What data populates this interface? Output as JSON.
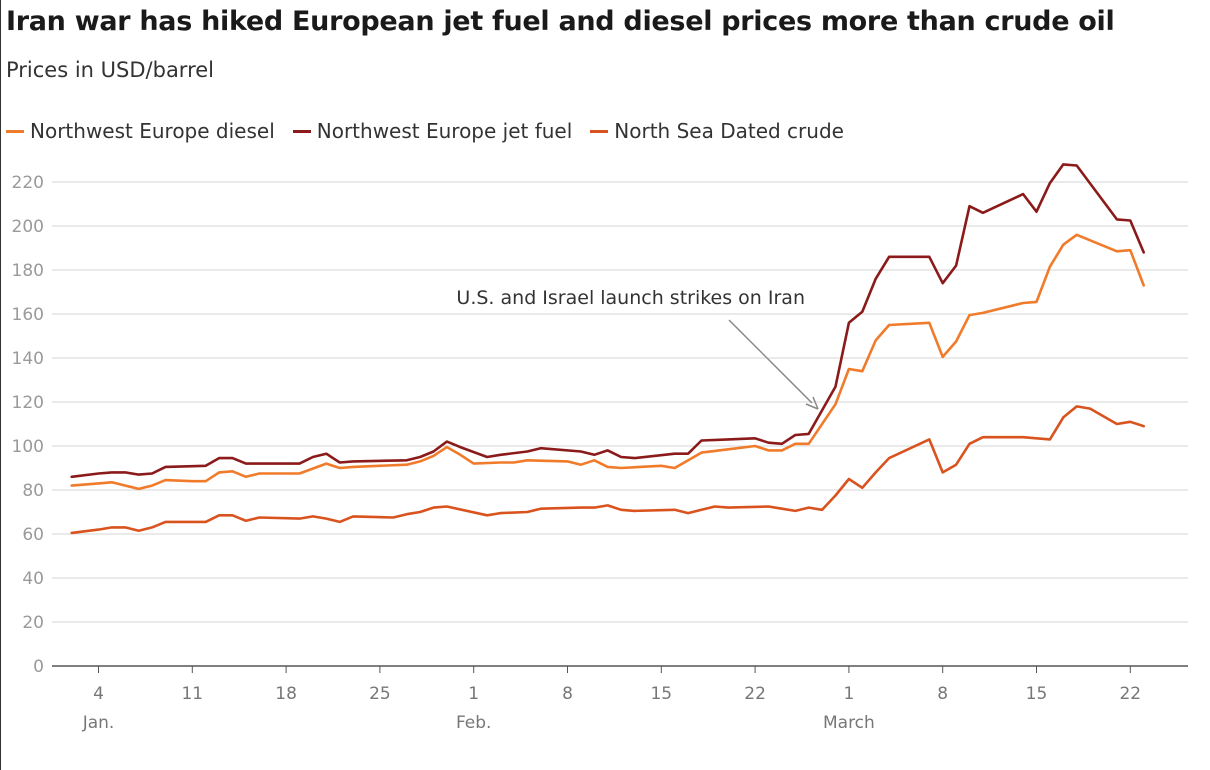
{
  "header": {
    "title": "Iran war has hiked European jet fuel and diesel prices more than crude oil",
    "subtitle": "Prices in USD/barrel"
  },
  "chart_data": {
    "type": "line",
    "title": "Iran war has hiked European jet fuel and diesel prices more than crude oil",
    "subtitle": "Prices in USD/barrel",
    "ylim": [
      0,
      230
    ],
    "y_ticks": [
      0,
      20,
      40,
      60,
      80,
      100,
      120,
      140,
      160,
      180,
      200,
      220
    ],
    "grid": true,
    "legend_position": "top-left",
    "x_ticks": [
      {
        "day": 4,
        "label": "4",
        "month": "Jan."
      },
      {
        "day": 11,
        "label": "11"
      },
      {
        "day": 18,
        "label": "18"
      },
      {
        "day": 25,
        "label": "25"
      },
      {
        "day": 32,
        "label": "1",
        "month": "Feb."
      },
      {
        "day": 39,
        "label": "8"
      },
      {
        "day": 46,
        "label": "15"
      },
      {
        "day": 53,
        "label": "22"
      },
      {
        "day": 60,
        "label": "1",
        "month": "March"
      },
      {
        "day": 67,
        "label": "8"
      },
      {
        "day": 74,
        "label": "15"
      },
      {
        "day": 81,
        "label": "22"
      }
    ],
    "annotation": {
      "text": "U.S. and Israel launch strikes on Iran"
    },
    "series": [
      {
        "name": "Northwest Europe diesel",
        "color": "#f07b2b",
        "points": [
          [
            2,
            82
          ],
          [
            4,
            83
          ],
          [
            5,
            83.5
          ],
          [
            6,
            82
          ],
          [
            7,
            80.5
          ],
          [
            8,
            82
          ],
          [
            9,
            84.5
          ],
          [
            11,
            84
          ],
          [
            12,
            84
          ],
          [
            13,
            88
          ],
          [
            14,
            88.5
          ],
          [
            15,
            86
          ],
          [
            16,
            87.5
          ],
          [
            19,
            87.5
          ],
          [
            21,
            92
          ],
          [
            22,
            90
          ],
          [
            23,
            90.5
          ],
          [
            27,
            91.5
          ],
          [
            28,
            93
          ],
          [
            29,
            95.5
          ],
          [
            30,
            99.5
          ],
          [
            31,
            96
          ],
          [
            32,
            92
          ],
          [
            34,
            92.5
          ],
          [
            35,
            92.5
          ],
          [
            36,
            93.5
          ],
          [
            39,
            93
          ],
          [
            40,
            91.5
          ],
          [
            41,
            93.5
          ],
          [
            42,
            90.5
          ],
          [
            43,
            90
          ],
          [
            46,
            91
          ],
          [
            47,
            90
          ],
          [
            49,
            97
          ],
          [
            51,
            98.5
          ],
          [
            53,
            100
          ],
          [
            54,
            98
          ],
          [
            55,
            98
          ],
          [
            56,
            101
          ],
          [
            57,
            101
          ],
          [
            59,
            119
          ],
          [
            60,
            135
          ],
          [
            61,
            134
          ],
          [
            62,
            148
          ],
          [
            63,
            155
          ],
          [
            66,
            156
          ],
          [
            67,
            140.5
          ],
          [
            68,
            147.5
          ],
          [
            69,
            159.5
          ],
          [
            70,
            160.5
          ],
          [
            73,
            165
          ],
          [
            74,
            165.5
          ],
          [
            75,
            181.5
          ],
          [
            76,
            191.5
          ],
          [
            77,
            196
          ],
          [
            80,
            188.5
          ],
          [
            81,
            189
          ],
          [
            82,
            173
          ]
        ]
      },
      {
        "name": "Northwest Europe jet fuel",
        "color": "#8b1a1a",
        "points": [
          [
            2,
            86
          ],
          [
            4,
            87.5
          ],
          [
            5,
            88
          ],
          [
            6,
            88
          ],
          [
            7,
            87
          ],
          [
            8,
            87.5
          ],
          [
            9,
            90.5
          ],
          [
            12,
            91
          ],
          [
            13,
            94.5
          ],
          [
            14,
            94.5
          ],
          [
            15,
            92
          ],
          [
            19,
            92
          ],
          [
            20,
            95
          ],
          [
            21,
            96.5
          ],
          [
            22,
            92.5
          ],
          [
            23,
            93
          ],
          [
            27,
            93.5
          ],
          [
            28,
            95
          ],
          [
            29,
            97.5
          ],
          [
            30,
            102
          ],
          [
            31,
            99.5
          ],
          [
            33,
            95
          ],
          [
            34,
            96
          ],
          [
            36,
            97.5
          ],
          [
            37,
            99
          ],
          [
            40,
            97.5
          ],
          [
            41,
            96
          ],
          [
            42,
            98
          ],
          [
            43,
            95
          ],
          [
            44,
            94.5
          ],
          [
            47,
            96.5
          ],
          [
            48,
            96.5
          ],
          [
            49,
            102.5
          ],
          [
            51,
            103
          ],
          [
            53,
            103.5
          ],
          [
            54,
            101.5
          ],
          [
            55,
            101
          ],
          [
            56,
            105
          ],
          [
            57,
            105.5
          ],
          [
            59,
            127
          ],
          [
            60,
            156
          ],
          [
            61,
            161
          ],
          [
            62,
            176
          ],
          [
            63,
            186
          ],
          [
            66,
            186
          ],
          [
            67,
            174
          ],
          [
            68,
            182
          ],
          [
            69,
            209
          ],
          [
            70,
            206
          ],
          [
            73,
            214.5
          ],
          [
            74,
            206.5
          ],
          [
            75,
            219.5
          ],
          [
            76,
            228
          ],
          [
            77,
            227.5
          ],
          [
            80,
            203
          ],
          [
            81,
            202.5
          ],
          [
            82,
            188
          ]
        ]
      },
      {
        "name": "North Sea Dated crude",
        "color": "#d9531e",
        "points": [
          [
            2,
            60.5
          ],
          [
            4,
            62
          ],
          [
            5,
            63
          ],
          [
            6,
            63
          ],
          [
            7,
            61.5
          ],
          [
            8,
            63
          ],
          [
            9,
            65.5
          ],
          [
            12,
            65.5
          ],
          [
            13,
            68.5
          ],
          [
            14,
            68.5
          ],
          [
            15,
            66
          ],
          [
            16,
            67.5
          ],
          [
            19,
            67
          ],
          [
            20,
            68
          ],
          [
            21,
            67
          ],
          [
            22,
            65.5
          ],
          [
            23,
            68
          ],
          [
            26,
            67.5
          ],
          [
            27,
            69
          ],
          [
            28,
            70
          ],
          [
            29,
            72
          ],
          [
            30,
            72.5
          ],
          [
            33,
            68.5
          ],
          [
            34,
            69.5
          ],
          [
            36,
            70
          ],
          [
            37,
            71.5
          ],
          [
            40,
            72
          ],
          [
            41,
            72
          ],
          [
            42,
            73
          ],
          [
            43,
            71
          ],
          [
            44,
            70.5
          ],
          [
            47,
            71
          ],
          [
            48,
            69.5
          ],
          [
            49,
            71
          ],
          [
            50,
            72.5
          ],
          [
            51,
            72
          ],
          [
            54,
            72.5
          ],
          [
            55,
            71.5
          ],
          [
            56,
            70.5
          ],
          [
            57,
            72
          ],
          [
            58,
            71
          ],
          [
            59,
            77.5
          ],
          [
            60,
            85
          ],
          [
            61,
            81
          ],
          [
            62,
            88
          ],
          [
            63,
            94.5
          ],
          [
            66,
            103
          ],
          [
            67,
            88
          ],
          [
            68,
            91.5
          ],
          [
            69,
            101
          ],
          [
            70,
            104
          ],
          [
            73,
            104
          ],
          [
            74,
            103.5
          ],
          [
            75,
            103
          ],
          [
            76,
            113
          ],
          [
            77,
            118
          ],
          [
            78,
            117
          ],
          [
            80,
            110
          ],
          [
            81,
            111
          ],
          [
            82,
            109
          ]
        ]
      }
    ]
  }
}
